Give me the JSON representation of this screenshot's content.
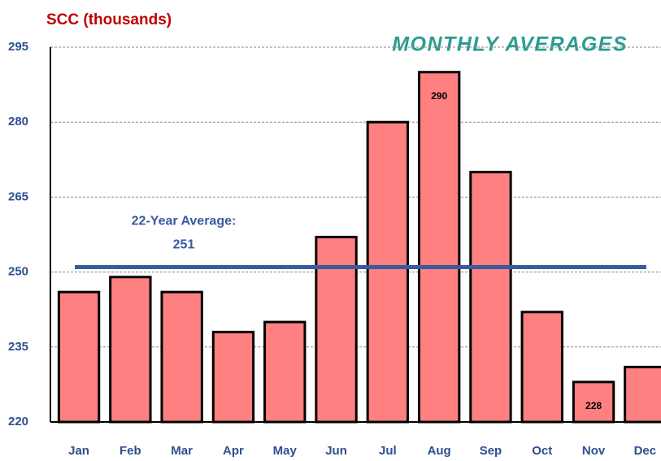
{
  "chart_data": {
    "type": "bar",
    "title": "SCC (thousands)",
    "subtitle": "MONTHLY AVERAGES",
    "categories": [
      "Jan",
      "Feb",
      "Mar",
      "Apr",
      "May",
      "Jun",
      "Jul",
      "Aug",
      "Sep",
      "Oct",
      "Nov",
      "Dec"
    ],
    "values": [
      246,
      249,
      246,
      238,
      240,
      257,
      280,
      290,
      270,
      242,
      228,
      231
    ],
    "labeled_categories": [
      "Aug",
      "Nov"
    ],
    "color": "#ff8080",
    "ylim": [
      220,
      295
    ],
    "yticks": [
      220,
      235,
      250,
      265,
      280,
      295
    ],
    "grid": true,
    "average": 251,
    "average_label": "22-Year Average:",
    "average_color": "#3a5a9e"
  }
}
